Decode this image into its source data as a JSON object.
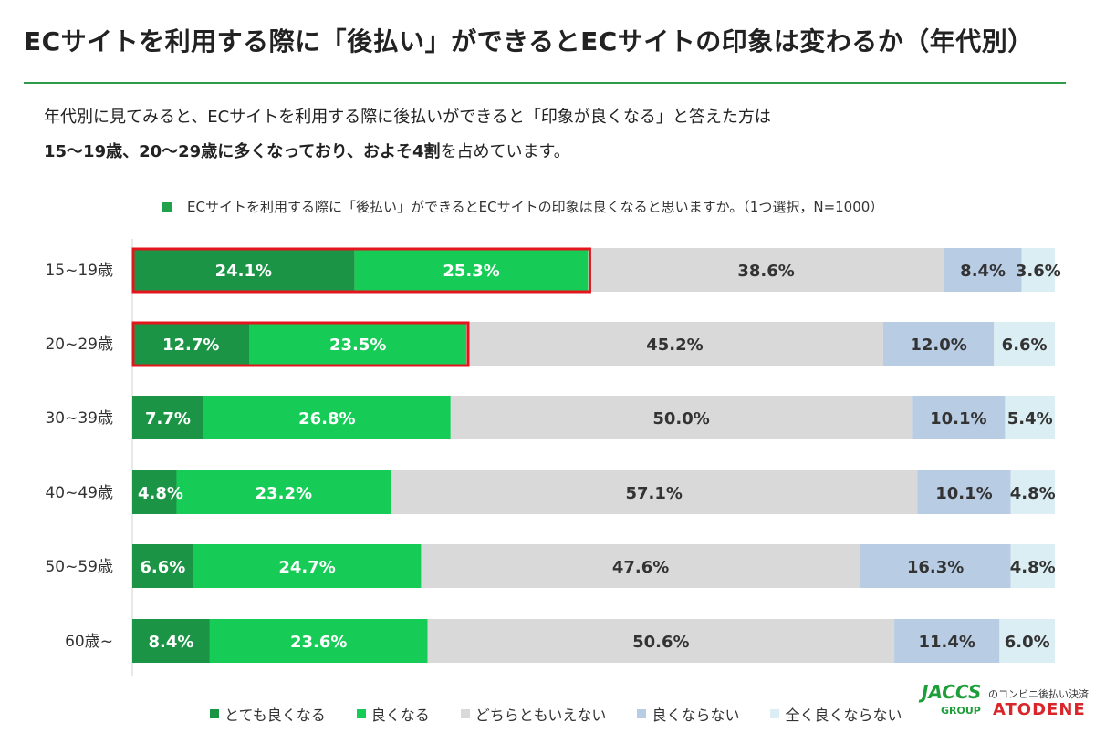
{
  "title": "ECサイトを利用する際に「後払い」ができるとECサイトの印象は変わるか（年代別）",
  "lead": {
    "line1": "年代別に見てみると、ECサイトを利用する際に後払いができると「印象が良くなる」と答えた方は",
    "line2_bold": "15～19歳、20～29歳に多くなっており、およそ4割",
    "line2_rest": "を占めています。"
  },
  "question": "ECサイトを利用する際に「後払い」ができるとECサイトの印象は良くなると思いますか。（1つ選択，N=1000）",
  "colors": {
    "title_rule": "#2f9a47",
    "highlight": "#e3161d"
  },
  "chart_data": {
    "type": "bar",
    "orientation": "horizontal",
    "stacked": true,
    "normalized": true,
    "categories": [
      "15~19歳",
      "20~29歳",
      "30~39歳",
      "40~49歳",
      "50~59歳",
      "60歳~"
    ],
    "series": [
      {
        "name": "とても良くなる",
        "color": "#1b9545",
        "values": [
          24.1,
          12.7,
          7.7,
          4.8,
          6.6,
          8.4
        ]
      },
      {
        "name": "良くなる",
        "color": "#16cc57",
        "values": [
          25.3,
          23.5,
          26.8,
          23.2,
          24.7,
          23.6
        ]
      },
      {
        "name": "どちらともいえない",
        "color": "#d9d9d9",
        "values": [
          38.6,
          45.2,
          50.0,
          57.1,
          47.6,
          50.6
        ]
      },
      {
        "name": "良くならない",
        "color": "#b8cce4",
        "values": [
          8.4,
          12.0,
          10.1,
          10.1,
          16.3,
          11.4
        ]
      },
      {
        "name": "全く良くならない",
        "color": "#dbeef3",
        "values": [
          3.6,
          6.6,
          5.4,
          4.8,
          4.8,
          6.0
        ]
      }
    ],
    "labels": [
      [
        "24.1%",
        "25.3%",
        "38.6%",
        "8.4%",
        "3.6%"
      ],
      [
        "12.7%",
        "23.5%",
        "45.2%",
        "12.0%",
        "6.6%"
      ],
      [
        "7.7%",
        "26.8%",
        "50.0%",
        "10.1%",
        "5.4%"
      ],
      [
        "4.8%",
        "23.2%",
        "57.1%",
        "10.1%",
        "4.8%"
      ],
      [
        "6.6%",
        "24.7%",
        "47.6%",
        "16.3%",
        "4.8%"
      ],
      [
        "8.4%",
        "23.6%",
        "50.6%",
        "11.4%",
        "6.0%"
      ]
    ],
    "highlighted_categories": [
      "15~19歳",
      "20~29歳"
    ],
    "xlim": [
      0,
      100
    ],
    "legend_position": "bottom"
  },
  "logo": {
    "jaccs": "JACCS",
    "group": "GROUP",
    "sub": "のコンビニ後払い決済",
    "atodene": "ATODENE"
  }
}
